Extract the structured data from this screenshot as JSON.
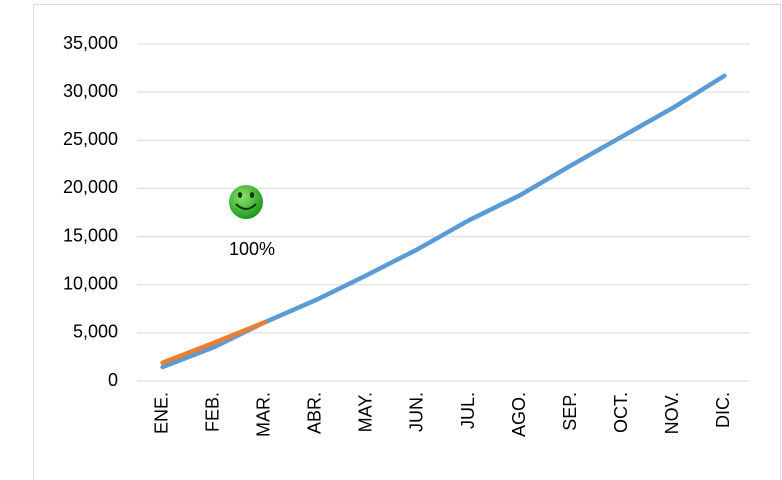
{
  "chart_data": {
    "type": "line",
    "categories": [
      "ENE.",
      "FEB.",
      "MAR.",
      "ABR.",
      "MAY.",
      "JUN.",
      "JUL.",
      "AGO.",
      "SEP.",
      "OCT.",
      "NOV.",
      "DIC."
    ],
    "series": [
      {
        "color": "#5b9bd5",
        "values": [
          1450,
          3500,
          6100,
          8400,
          11000,
          13700,
          16700,
          19300,
          22400,
          25400,
          28400,
          31700
        ]
      },
      {
        "color": "#ed7d31",
        "values": [
          1900,
          3950,
          6100,
          null,
          null,
          null,
          null,
          null,
          null,
          null,
          null,
          null
        ]
      }
    ],
    "ylim": [
      0,
      35000
    ],
    "yticks": [
      0,
      {
        "value": 5000,
        "label": "5,000"
      },
      {
        "value": 10000,
        "label": "10,000"
      },
      {
        "value": 15000,
        "label": "15,000"
      },
      {
        "value": 20000,
        "label": "20,000"
      },
      {
        "value": 25000,
        "label": "25,000"
      },
      {
        "value": 30000,
        "label": "30,000"
      },
      {
        "value": 35000,
        "label": "35,000"
      }
    ],
    "grid": true,
    "annotation": "100%"
  }
}
